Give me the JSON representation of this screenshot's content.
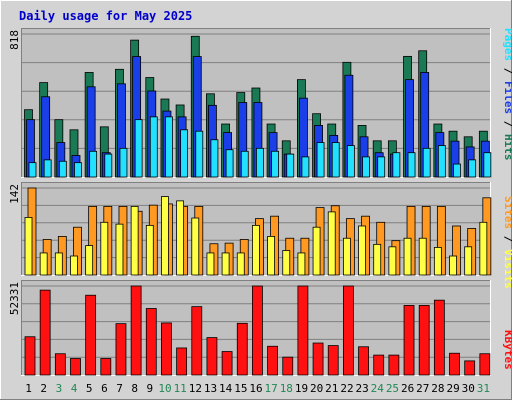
{
  "chart_data": {
    "type": "bar",
    "title": "Daily usage for May 2025",
    "colors": {
      "hits": "#1a7a55",
      "files": "#1a3ee8",
      "pages": "#22e0ff",
      "visits": "#ffff44",
      "sites": "#ff9922",
      "kbytes": "#ff1111",
      "title": "#0000cc",
      "weekend_day": "#228855",
      "weekday": "#000000",
      "panel_bg": "#c0c0c0",
      "outer_bg": "#d3d3d3"
    },
    "days": [
      "1",
      "2",
      "3",
      "4",
      "5",
      "6",
      "7",
      "8",
      "9",
      "10",
      "11",
      "12",
      "13",
      "14",
      "15",
      "16",
      "17",
      "18",
      "19",
      "20",
      "21",
      "22",
      "23",
      "24",
      "25",
      "26",
      "27",
      "28",
      "29",
      "30",
      "31"
    ],
    "weekend_days": [
      "3",
      "4",
      "10",
      "11",
      "17",
      "18",
      "24",
      "25",
      "31"
    ],
    "panels": [
      {
        "id": "traffic",
        "ymax_label": "818",
        "ymax": 818,
        "right_labels": [
          {
            "text": "Pages",
            "color": "#22e0ff"
          },
          {
            "text": " / ",
            "color": "#000000"
          },
          {
            "text": "Files",
            "color": "#1a3ee8"
          },
          {
            "text": " / ",
            "color": "#000000"
          },
          {
            "text": "Hits",
            "color": "#1a7a55"
          }
        ],
        "series": [
          {
            "name": "Hits",
            "color": "#1a7a55",
            "values": [
              385,
              540,
              328,
              270,
              598,
              287,
              616,
              783,
              569,
              446,
              412,
              805,
              476,
              303,
              483,
              509,
              303,
              207,
              557,
              362,
              303,
              656,
              295,
              207,
              207,
              690,
              722,
              303,
              262,
              230,
              262
            ]
          },
          {
            "name": "Files",
            "color": "#1a3ee8",
            "values": [
              328,
              459,
              197,
              123,
              516,
              139,
              533,
              689,
              492,
              377,
              344,
              689,
              410,
              254,
              426,
              426,
              254,
              131,
              451,
              295,
              238,
              582,
              230,
              139,
              131,
              557,
              598,
              254,
              205,
              172,
              205
            ]
          },
          {
            "name": "Pages",
            "color": "#22e0ff",
            "values": [
              82,
              98,
              90,
              82,
              147,
              131,
              164,
              328,
              344,
              344,
              270,
              262,
              213,
              156,
              147,
              164,
              147,
              131,
              115,
              197,
              197,
              180,
              115,
              115,
              139,
              139,
              164,
              180,
              74,
              98,
              139
            ]
          }
        ]
      },
      {
        "id": "visits",
        "ymax_label": "142",
        "ymax": 142,
        "right_labels": [
          {
            "text": "Sites",
            "color": "#ff9922"
          },
          {
            "text": " / ",
            "color": "#000000"
          },
          {
            "text": "Visits",
            "color": "#ffff44"
          }
        ],
        "series": [
          {
            "name": "Visits",
            "color": "#ffff44",
            "values": [
              94,
              36,
              36,
              31,
              48,
              86,
              83,
              112,
              81,
              128,
              121,
              93,
              36,
              36,
              36,
              81,
              63,
              40,
              36,
              78,
              103,
              60,
              80,
              50,
              46,
              60,
              60,
              45,
              31,
              46,
              86
            ]
          },
          {
            "name": "Sites",
            "color": "#ff9922",
            "values": [
              142,
              58,
              63,
              78,
              112,
              112,
              112,
              104,
              114,
              116,
              112,
              112,
              51,
              52,
              58,
              92,
              96,
              60,
              60,
              110,
              113,
              92,
              96,
              86,
              56,
              112,
              112,
              112,
              80,
              76,
              126
            ]
          }
        ]
      },
      {
        "id": "kbytes",
        "ymax_label": "52331",
        "ymax": 52331,
        "right_labels": [
          {
            "text": "KBytes",
            "color": "#ff1111"
          }
        ],
        "series": [
          {
            "name": "KBytes",
            "color": "#ff1111",
            "values": [
              22500,
              49900,
              12500,
              9700,
              46900,
              9700,
              30200,
              52331,
              39100,
              30600,
              15900,
              40200,
              22000,
              13800,
              30400,
              52331,
              16900,
              10500,
              52331,
              18800,
              17300,
              52331,
              16600,
              11700,
              11700,
              40900,
              40900,
              44000,
              12800,
              8300,
              12500
            ]
          }
        ]
      }
    ]
  }
}
